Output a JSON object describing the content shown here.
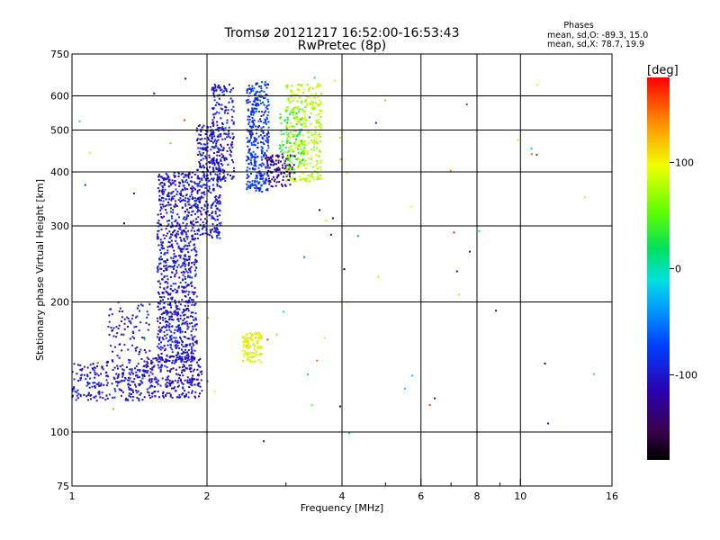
{
  "chart_data": {
    "type": "scatter",
    "title": "Tromsø 20121217 16:52:00-16:53:43",
    "subtitle": "RwPretec (8p)",
    "xlabel": "Frequency [MHz]",
    "ylabel": "Stationary phase Virtual Height [km]",
    "x_scale": "log",
    "y_scale": "log",
    "xlim": [
      1,
      16
    ],
    "ylim": [
      75,
      750
    ],
    "x_ticks": [
      1,
      2,
      4,
      6,
      8,
      10,
      16
    ],
    "x_tick_labels": [
      "1",
      "2",
      "4",
      "6",
      "8",
      "10",
      "16"
    ],
    "x_minor_ticks": [
      3,
      5,
      7,
      9
    ],
    "y_ticks": [
      75,
      100,
      200,
      300,
      400,
      500,
      600,
      750
    ],
    "y_tick_labels": [
      "75",
      "100",
      "200",
      "300",
      "400",
      "500",
      "600",
      "750"
    ],
    "grid": true,
    "annotation": {
      "heading": "Phases",
      "line_o": "mean, sd,O: -89.3, 15.0",
      "line_x": "mean, sd,X: 78.7, 19.9"
    },
    "colorbar": {
      "label": "[deg]",
      "range": [
        -180,
        180
      ],
      "ticks": [
        -100,
        0,
        100
      ],
      "tick_labels": [
        "-100",
        "0",
        "100"
      ]
    },
    "clusters": [
      {
        "name": "o-trace-low",
        "f": [
          1.0,
          1.45
        ],
        "h": [
          118,
          145
        ],
        "phase": -100,
        "n": 230
      },
      {
        "name": "o-trace-ramp",
        "f": [
          1.2,
          1.5
        ],
        "h": [
          145,
          200
        ],
        "phase": -100,
        "n": 90
      },
      {
        "name": "o-trace-base",
        "f": [
          1.45,
          1.95
        ],
        "h": [
          120,
          150
        ],
        "phase": -105,
        "n": 260
      },
      {
        "name": "o-f-column",
        "f": [
          1.55,
          1.9
        ],
        "h": [
          145,
          400
        ],
        "phase": -100,
        "n": 900
      },
      {
        "name": "o-f-spread",
        "f": [
          1.9,
          2.15
        ],
        "h": [
          280,
          520
        ],
        "phase": -100,
        "n": 330
      },
      {
        "name": "o-upper-1",
        "f": [
          2.05,
          2.3
        ],
        "h": [
          380,
          640
        ],
        "phase": -100,
        "n": 200
      },
      {
        "name": "o-upper-2",
        "f": [
          2.45,
          2.75
        ],
        "h": [
          360,
          650
        ],
        "phase": -80,
        "n": 360
      },
      {
        "name": "o-cusp",
        "f": [
          2.7,
          3.15
        ],
        "h": [
          370,
          440
        ],
        "phase": -130,
        "n": 120
      },
      {
        "name": "x-trace-low",
        "f": [
          2.4,
          2.65
        ],
        "h": [
          145,
          170
        ],
        "phase": 95,
        "n": 110
      },
      {
        "name": "x-trace-upper",
        "f": [
          3.0,
          3.6
        ],
        "h": [
          380,
          640
        ],
        "phase": 78,
        "n": 340
      },
      {
        "name": "x-trace-mixed",
        "f": [
          2.9,
          3.3
        ],
        "h": [
          420,
          560
        ],
        "phase": 30,
        "n": 70
      },
      {
        "name": "scattered-points",
        "f": [
          1.0,
          16.0
        ],
        "h": [
          95,
          680
        ],
        "phase": 0,
        "n": 70
      }
    ]
  }
}
